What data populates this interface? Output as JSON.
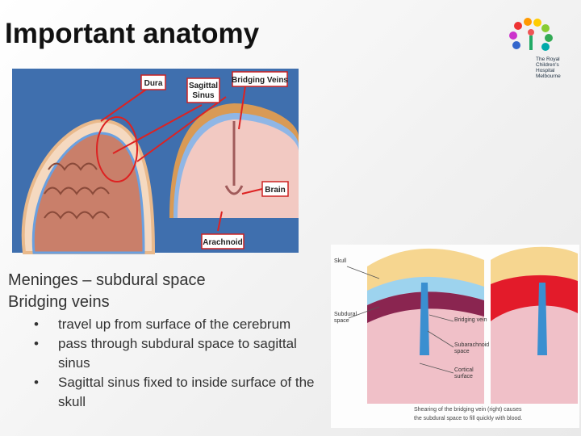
{
  "title": "Important anatomy",
  "logo": {
    "lines": [
      "The Royal",
      "Children's",
      "Hospital",
      "Melbourne"
    ]
  },
  "figure1": {
    "labels": {
      "dura": [
        "Dura"
      ],
      "sagittal_sinus": [
        "Sagittal",
        "Sinus"
      ],
      "bridging_veins": [
        "Bridging Veins"
      ],
      "brain": [
        "Brain"
      ],
      "arachnoid": [
        "Arachnoid"
      ]
    }
  },
  "body": {
    "headings": [
      "Meninges – subdural space",
      "Bridging veins"
    ],
    "bullets": [
      "travel up from surface of the cerebrum",
      "pass through subdural space to sagittal sinus",
      "Sagittal sinus fixed to inside surface of the skull"
    ]
  },
  "figure2": {
    "labels": {
      "skull": [
        "Skull"
      ],
      "subdural_space": [
        "Subdural",
        "space"
      ],
      "bridging_vein": [
        "Bridging vein"
      ],
      "subarachnoid_space": [
        "Subarachnoid",
        "space"
      ],
      "cortical_surface": [
        "Cortical",
        "surface"
      ]
    },
    "caption": [
      "Shearing of the bridging vein (right) causes",
      "the subdural space to fill quickly with blood."
    ]
  }
}
